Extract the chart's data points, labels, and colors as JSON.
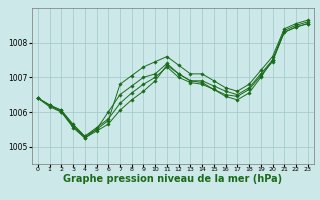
{
  "background_color": "#cde8e8",
  "grid_color": "#a0c8c8",
  "line_color": "#1a6b1a",
  "xlabel": "Graphe pression niveau de la mer (hPa)",
  "xlabel_fontsize": 7,
  "yticks": [
    1005,
    1006,
    1007,
    1008
  ],
  "xticks": [
    0,
    1,
    2,
    3,
    4,
    5,
    6,
    7,
    8,
    9,
    10,
    11,
    12,
    13,
    14,
    15,
    16,
    17,
    18,
    19,
    20,
    21,
    22,
    23
  ],
  "xlim": [
    -0.5,
    23.5
  ],
  "ylim": [
    1004.5,
    1009.0
  ],
  "series": [
    [
      1006.4,
      1006.2,
      1006.0,
      1005.55,
      1005.25,
      1005.45,
      1005.65,
      1006.05,
      1006.35,
      1006.6,
      1006.9,
      1007.35,
      1007.1,
      1006.9,
      1006.85,
      1006.65,
      1006.45,
      1006.35,
      1006.55,
      1007.0,
      1007.5,
      1008.3,
      1008.45,
      1008.55
    ],
    [
      1006.4,
      1006.15,
      1006.0,
      1005.6,
      1005.25,
      1005.5,
      1006.0,
      1006.5,
      1006.75,
      1007.0,
      1007.1,
      1007.4,
      1007.1,
      1006.9,
      1006.9,
      1006.75,
      1006.6,
      1006.5,
      1006.7,
      1007.1,
      1007.5,
      1008.35,
      1008.5,
      1008.6
    ],
    [
      1006.4,
      1006.2,
      1006.05,
      1005.65,
      1005.3,
      1005.55,
      1005.8,
      1006.25,
      1006.55,
      1006.8,
      1007.0,
      1007.3,
      1007.0,
      1006.85,
      1006.8,
      1006.65,
      1006.5,
      1006.45,
      1006.65,
      1007.05,
      1007.45,
      1008.3,
      1008.45,
      1008.55
    ],
    [
      1006.4,
      1006.2,
      1006.05,
      1005.6,
      1005.3,
      1005.5,
      1005.75,
      1006.8,
      1007.05,
      1007.3,
      1007.45,
      1007.6,
      1007.35,
      1007.1,
      1007.1,
      1006.9,
      1006.7,
      1006.6,
      1006.8,
      1007.2,
      1007.6,
      1008.4,
      1008.55,
      1008.65
    ]
  ]
}
